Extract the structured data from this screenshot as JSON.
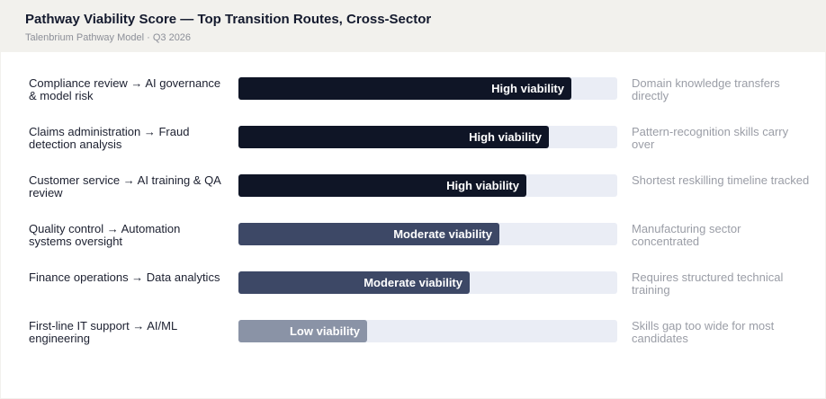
{
  "header": {
    "title": "Pathway Viability Score — Top Transition Routes, Cross-Sector",
    "subtitle": "Talenbrium Pathway Model · Q3 2026"
  },
  "colors": {
    "high": "#0f1526",
    "moderate": "#3d4866",
    "low": "#8a93a6",
    "track": "#eaedf5"
  },
  "chart_data": {
    "type": "bar",
    "orientation": "horizontal",
    "scale_max": 100,
    "categories": [
      "Compliance review → AI governance & model risk",
      "Claims administration → Fraud detection analysis",
      "Customer service → AI training & QA review",
      "Quality control → Automation systems oversight",
      "Finance operations → Data analytics",
      "First-line IT support → AI/ML engineering"
    ],
    "values": [
      88,
      82,
      76,
      69,
      61,
      34
    ],
    "data_labels": [
      "High viability",
      "High viability",
      "High viability",
      "Moderate viability",
      "Moderate viability",
      "Low viability"
    ],
    "levels": [
      "high",
      "high",
      "high",
      "moderate",
      "moderate",
      "low"
    ],
    "annotations": [
      "Domain knowledge transfers directly",
      "Pattern-recognition skills carry over",
      "Shortest reskilling timeline tracked",
      "Manufacturing sector concentrated",
      "Requires structured technical training",
      "Skills gap too wide for most candidates"
    ],
    "grid": false,
    "legend": "none"
  }
}
